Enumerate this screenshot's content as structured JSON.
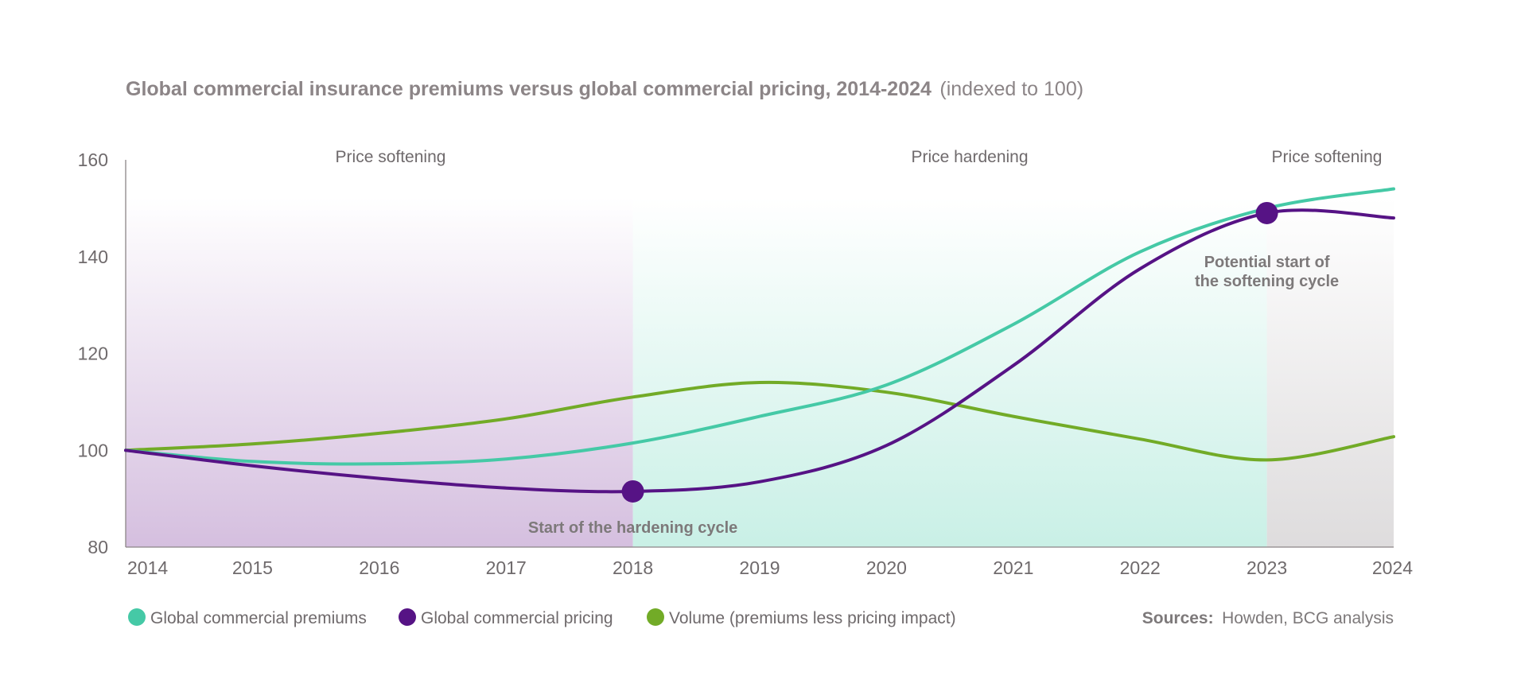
{
  "chart_data": {
    "type": "line",
    "title": "Global commercial insurance premiums versus global commercial pricing, 2014-2024",
    "subtitle": "(indexed to 100)",
    "xlabel": "",
    "ylabel": "",
    "xlim": [
      2014,
      2024
    ],
    "ylim": [
      80,
      160
    ],
    "x_ticks": [
      "2014",
      "2015",
      "2016",
      "2017",
      "2018",
      "2019",
      "2020",
      "2021",
      "2022",
      "2023",
      "2024"
    ],
    "y_ticks": [
      "80",
      "100",
      "120",
      "140",
      "160"
    ],
    "grid": false,
    "legend_position": "bottom-left",
    "phases": [
      {
        "label": "Price softening",
        "start": 2014,
        "end": 2018,
        "color": "#d5bfdf"
      },
      {
        "label": "Price hardening",
        "start": 2018,
        "end": 2023,
        "color": "#c9f0e6"
      },
      {
        "label": "Price softening",
        "start": 2023,
        "end": 2024,
        "color": "#dedcdd"
      }
    ],
    "series": [
      {
        "name": "Global commercial premiums",
        "color": "#45c9a6",
        "x": [
          2014,
          2015,
          2016,
          2017,
          2018,
          2019,
          2020,
          2021,
          2022,
          2023,
          2024
        ],
        "values": [
          100,
          97.7,
          97.2,
          98.2,
          101.5,
          107,
          113.5,
          126,
          141,
          150,
          154
        ]
      },
      {
        "name": "Global commercial pricing",
        "color": "#561385",
        "x": [
          2014,
          2015,
          2016,
          2017,
          2018,
          2019,
          2020,
          2021,
          2022,
          2023,
          2024
        ],
        "values": [
          100,
          96.8,
          94.2,
          92.2,
          91.5,
          93.5,
          101,
          117.5,
          137.5,
          149,
          148
        ]
      },
      {
        "name": "Volume (premiums less pricing impact)",
        "color": "#72ab27",
        "x": [
          2014,
          2015,
          2016,
          2017,
          2018,
          2019,
          2020,
          2021,
          2022,
          2023,
          2024
        ],
        "values": [
          100,
          101.3,
          103.5,
          106.5,
          111,
          114,
          112,
          107,
          102.3,
          98,
          102.8
        ]
      }
    ],
    "annotations": [
      {
        "text_lines": [
          "Start of the hardening cycle"
        ],
        "x": 2018,
        "y": 91.5,
        "series": "Global commercial pricing"
      },
      {
        "text_lines": [
          "Potential start of",
          "the softening cycle"
        ],
        "x": 2023,
        "y": 149,
        "series": "Global commercial pricing"
      }
    ],
    "source_label": "Sources:",
    "source_text": "Howden, BCG analysis"
  }
}
